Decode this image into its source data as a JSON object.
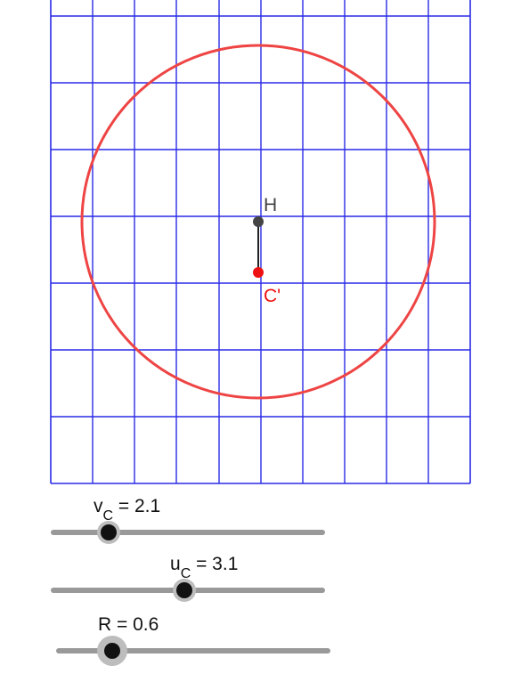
{
  "graphics": {
    "grid": {
      "visible": true,
      "color": "#2a2ae8"
    },
    "circle": {
      "stroke_color": "#ee4444"
    },
    "points": [
      {
        "name": "H",
        "label": "H",
        "color": "#444444"
      },
      {
        "name": "C'",
        "label": "C'",
        "color": "#ee1111"
      }
    ]
  },
  "sliders": [
    {
      "var": "v",
      "sub": "C",
      "eq": " = 2.1",
      "value": 2.1,
      "position_fraction": 0.21
    },
    {
      "var": "u",
      "sub": "C",
      "eq": " = 3.1",
      "value": 3.1,
      "position_fraction": 0.49
    },
    {
      "var": "R",
      "sub": "",
      "eq": "R = 0.6",
      "value": 0.6,
      "position_fraction": 0.2
    }
  ],
  "colors": {
    "slider_track": "#999999",
    "slider_knob": "#111111",
    "slider_knob_halo": "#bdbdbd"
  }
}
